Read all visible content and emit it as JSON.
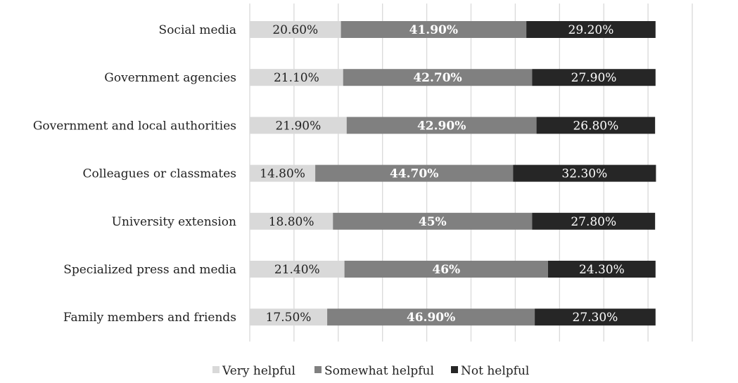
{
  "chart_data": {
    "type": "bar",
    "orientation": "horizontal",
    "stacked": true,
    "categories": [
      "Social media",
      "Government agencies",
      "Government and local authorities",
      "Colleagues or classmates",
      "University extension",
      "Specialized press and media",
      "Family members and friends"
    ],
    "series": [
      {
        "name": "Very helpful",
        "color": "#d9d9d9",
        "label_color": "#222222",
        "values": [
          20.6,
          21.1,
          21.9,
          14.8,
          18.8,
          21.4,
          17.5
        ],
        "labels": [
          "20.60%",
          "21.10%",
          "21.90%",
          "14.80%",
          "18.80%",
          "21.40%",
          "17.50%"
        ]
      },
      {
        "name": "Somewhat helpful",
        "color": "#808080",
        "label_color": "#ffffff",
        "values": [
          41.9,
          42.7,
          42.9,
          44.7,
          45,
          46,
          46.9
        ],
        "labels": [
          "41.90%",
          "42.70%",
          "42.90%",
          "44.70%",
          "45%",
          "46%",
          "46.90%"
        ]
      },
      {
        "name": "Not helpful",
        "color": "#262626",
        "label_color": "#ffffff",
        "values": [
          29.2,
          27.9,
          26.8,
          32.3,
          27.8,
          24.3,
          27.3
        ],
        "labels": [
          "29.20%",
          "27.90%",
          "26.80%",
          "32.30%",
          "27.80%",
          "24.30%",
          "27.30%"
        ]
      }
    ],
    "xlim": [
      0,
      100
    ],
    "grid": true,
    "gridline_step": 10,
    "tick_labels_shown": false,
    "legend_placement": "bottom"
  }
}
